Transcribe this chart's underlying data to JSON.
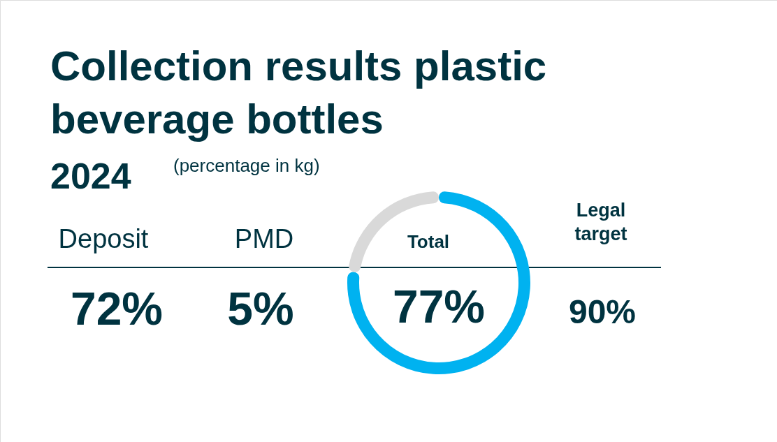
{
  "chart_data": {
    "type": "donut",
    "title": "Collection results plastic beverage bottles",
    "subtitle": "2024",
    "annotations": [
      "(percentage in kg)",
      "Deposit",
      "72%",
      "PMD",
      "5%",
      "Legal target",
      "90%",
      "Total"
    ],
    "categories": [
      null,
      null
    ],
    "values": [
      77,
      23
    ],
    "colors": [
      "#00b2f0",
      "#d9d9d9"
    ],
    "value_labels": [
      "77%",
      null
    ]
  }
}
